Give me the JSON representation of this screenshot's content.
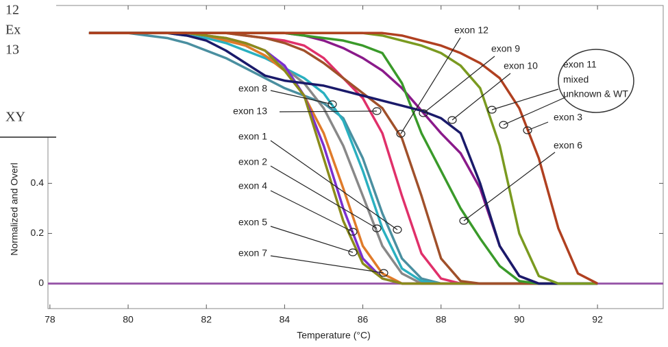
{
  "chart_data": {
    "type": "line",
    "x_label": "Temperature (°C)",
    "y_label": "Normalized and Overl",
    "sidebar_fragment": [
      "12",
      "Ex",
      "13",
      "XY"
    ],
    "xlim": [
      77.95,
      93.68
    ],
    "ylim": [
      -0.1,
      1.11
    ],
    "xticks": [
      78,
      80,
      82,
      84,
      86,
      88,
      90,
      92
    ],
    "yticks": [
      0,
      0.2,
      0.4
    ],
    "grid": false,
    "x": [
      79,
      79.5,
      80,
      80.5,
      81,
      81.5,
      82,
      82.5,
      83,
      83.5,
      84,
      84.5,
      85,
      85.5,
      86,
      86.5,
      87,
      87.5,
      88,
      88.5,
      89,
      89.5,
      90,
      90.5,
      91,
      91.5,
      92
    ],
    "series": [
      {
        "name": "exon 8",
        "color": "#4a8fa0",
        "values": [
          1,
          1,
          1,
          0.99,
          0.98,
          0.96,
          0.93,
          0.9,
          0.86,
          0.82,
          0.78,
          0.75,
          0.72,
          0.66,
          0.5,
          0.28,
          0.1,
          0.02,
          0,
          0,
          0,
          0,
          0,
          0,
          0,
          0,
          0
        ]
      },
      {
        "name": "exon 13",
        "color": "#e0306a",
        "values": [
          1,
          1,
          1,
          1,
          1,
          1,
          1,
          1,
          0.99,
          0.98,
          0.97,
          0.95,
          0.9,
          0.82,
          0.74,
          0.6,
          0.35,
          0.12,
          0.02,
          0,
          0,
          0,
          0,
          0,
          0,
          0,
          0
        ]
      },
      {
        "name": "exon 1",
        "color": "#2ab0c0",
        "values": [
          1,
          1,
          1,
          1,
          1,
          0.99,
          0.98,
          0.96,
          0.93,
          0.9,
          0.86,
          0.82,
          0.76,
          0.65,
          0.45,
          0.22,
          0.06,
          0.01,
          0,
          0,
          0,
          0,
          0,
          0,
          0,
          0,
          0
        ]
      },
      {
        "name": "exon 2",
        "color": "#888888",
        "values": [
          1,
          1,
          1,
          1,
          1,
          1,
          0.99,
          0.97,
          0.95,
          0.91,
          0.86,
          0.8,
          0.7,
          0.55,
          0.35,
          0.15,
          0.04,
          0,
          0,
          0,
          0,
          0,
          0,
          0,
          0,
          0,
          0
        ]
      },
      {
        "name": "exon 4",
        "color": "#e07b2a",
        "values": [
          1,
          1,
          1,
          1,
          1,
          1,
          0.99,
          0.97,
          0.95,
          0.91,
          0.85,
          0.75,
          0.6,
          0.38,
          0.15,
          0.04,
          0,
          0,
          0,
          0,
          0,
          0,
          0,
          0,
          0,
          0,
          0
        ]
      },
      {
        "name": "exon 5",
        "color": "#7b2fd0",
        "values": [
          1,
          1,
          1,
          1,
          1,
          1,
          0.99,
          0.98,
          0.96,
          0.93,
          0.87,
          0.75,
          0.55,
          0.3,
          0.1,
          0.02,
          0,
          0,
          0,
          0,
          0,
          0,
          0,
          0,
          0,
          0,
          0
        ]
      },
      {
        "name": "exon 7",
        "color": "#8b8b1a",
        "values": [
          1,
          1,
          1,
          1,
          1,
          1,
          0.99,
          0.98,
          0.96,
          0.93,
          0.85,
          0.75,
          0.5,
          0.25,
          0.08,
          0.02,
          0,
          0,
          0,
          0,
          0,
          0,
          0,
          0,
          0,
          0,
          0
        ]
      },
      {
        "name": "exon 12",
        "color": "#a0502a",
        "values": [
          1,
          1,
          1,
          1,
          1,
          1,
          1,
          1,
          0.99,
          0.98,
          0.96,
          0.93,
          0.88,
          0.82,
          0.76,
          0.7,
          0.58,
          0.35,
          0.1,
          0.01,
          0,
          0,
          0,
          0,
          0,
          0,
          0
        ]
      },
      {
        "name": "exon 9",
        "color": "#8a1a8a",
        "values": [
          1,
          1,
          1,
          1,
          1,
          1,
          1,
          1,
          1,
          1,
          1,
          0.99,
          0.97,
          0.94,
          0.9,
          0.85,
          0.78,
          0.69,
          0.6,
          0.52,
          0.38,
          0.15,
          0.03,
          0,
          0,
          0,
          0
        ]
      },
      {
        "name": "exon 6",
        "color": "#3a9a2a",
        "values": [
          1,
          1,
          1,
          1,
          1,
          1,
          1,
          1,
          1,
          1,
          1,
          0.99,
          0.98,
          0.97,
          0.95,
          0.92,
          0.8,
          0.6,
          0.45,
          0.3,
          0.18,
          0.07,
          0.01,
          0,
          0,
          0,
          0
        ]
      },
      {
        "name": "exon 10",
        "color": "#1a1a6a",
        "values": [
          1,
          1,
          1,
          1,
          1,
          0.99,
          0.97,
          0.93,
          0.88,
          0.83,
          0.81,
          0.8,
          0.79,
          0.77,
          0.75,
          0.73,
          0.71,
          0.69,
          0.66,
          0.6,
          0.4,
          0.15,
          0.03,
          0,
          0,
          0,
          0
        ]
      },
      {
        "name": "exon 11",
        "color": "#7a9a20",
        "values": [
          1,
          1,
          1,
          1,
          1,
          1,
          1,
          1,
          1,
          1,
          1,
          1,
          1,
          1,
          1,
          0.99,
          0.97,
          0.95,
          0.92,
          0.87,
          0.78,
          0.55,
          0.2,
          0.03,
          0,
          0,
          0
        ]
      },
      {
        "name": "exon 3",
        "color": "#b04020",
        "values": [
          1,
          1,
          1,
          1,
          1,
          1,
          1,
          1,
          1,
          1,
          1,
          1,
          1,
          1,
          1,
          1,
          0.99,
          0.97,
          0.95,
          0.92,
          0.88,
          0.82,
          0.7,
          0.5,
          0.22,
          0.04,
          0
        ]
      }
    ],
    "annotation_box": [
      "mixed",
      "unknown & WT"
    ]
  }
}
